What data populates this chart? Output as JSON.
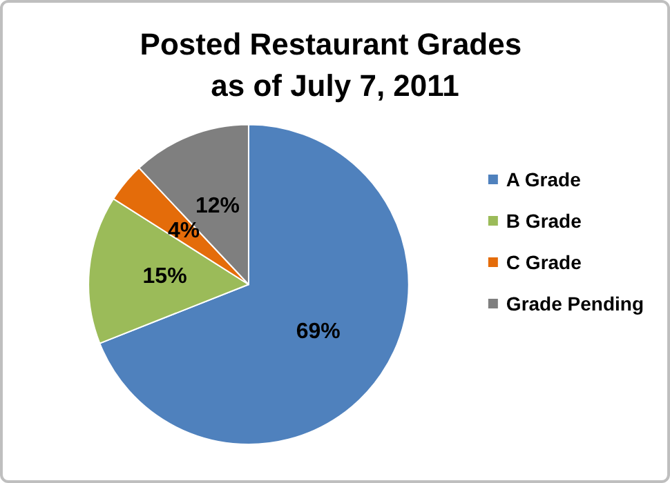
{
  "chart_data": {
    "type": "pie",
    "title": "Posted Restaurant Grades as of July 7, 2011",
    "categories": [
      "A Grade",
      "B Grade",
      "C Grade",
      "Grade Pending"
    ],
    "values": [
      69,
      15,
      4,
      12
    ],
    "colors": [
      "#4f81bd",
      "#9bbb59",
      "#e46c0a",
      "#7f7f7f"
    ],
    "value_labels": [
      "69%",
      "15%",
      "4%",
      "12%"
    ],
    "legend": "right"
  }
}
